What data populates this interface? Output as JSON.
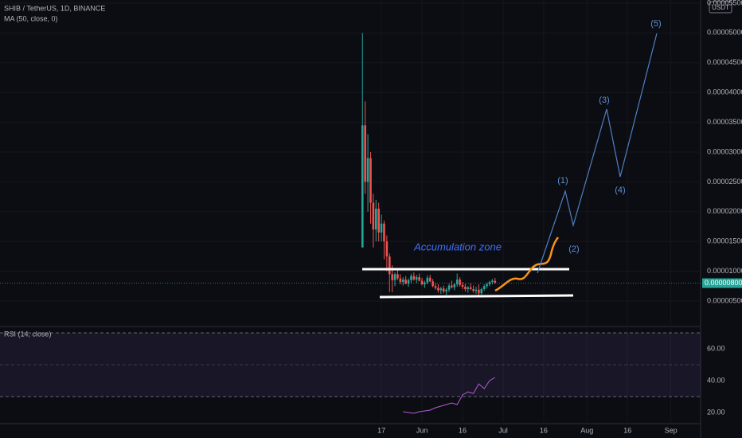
{
  "chart_data": [
    {
      "type": "candlestick",
      "title": "SHIB / TetherUS, 1D, BINANCE",
      "indicator": "MA (50, close, 0)",
      "currency": "USDT",
      "up_color": "#26a69a",
      "down_color": "#ef5350",
      "grid": true,
      "xlim": [
        -134,
        125
      ],
      "xticks": [
        {
          "value": 7,
          "label": "17"
        },
        {
          "value": 22,
          "label": "Jun"
        },
        {
          "value": 37,
          "label": "16"
        },
        {
          "value": 52,
          "label": "Jul"
        },
        {
          "value": 67,
          "label": "16"
        },
        {
          "value": 83,
          "label": "Aug"
        },
        {
          "value": 98,
          "label": "16"
        },
        {
          "value": 114,
          "label": "Sep"
        }
      ],
      "ylim": [
        1.39e-06,
        5.553e-05
      ],
      "yticks": [
        {
          "value": 5e-06,
          "label": "0.00000500"
        },
        {
          "value": 1e-05,
          "label": "0.00001000"
        },
        {
          "value": 1.5e-05,
          "label": "0.00001500"
        },
        {
          "value": 2e-05,
          "label": "0.00002000"
        },
        {
          "value": 2.5e-05,
          "label": "0.00002500"
        },
        {
          "value": 3e-05,
          "label": "0.00003000"
        },
        {
          "value": 3.5e-05,
          "label": "0.00003500"
        },
        {
          "value": 4e-05,
          "label": "0.00004000"
        },
        {
          "value": 4.5e-05,
          "label": "0.00004500"
        },
        {
          "value": 5e-05,
          "label": "0.00005000"
        },
        {
          "value": 5.5e-05,
          "label": "0.00005500"
        }
      ],
      "last_price": {
        "value": 8e-06,
        "label": "0.00000800"
      },
      "annotations": [
        "Accumulation zone",
        "(1)",
        "(2)",
        "(3)",
        "(4)",
        "(5)"
      ],
      "x": [
        0,
        1,
        2,
        3,
        4,
        5,
        6,
        7,
        8,
        9,
        10,
        11,
        12,
        13,
        14,
        15,
        16,
        17,
        18,
        19,
        20,
        21,
        22,
        23,
        24,
        25,
        26,
        27,
        28,
        29,
        30,
        31,
        32,
        33,
        34,
        35,
        36,
        37,
        38,
        39,
        40,
        41,
        42,
        43,
        44,
        45,
        46,
        47,
        48,
        49
      ],
      "candles": [
        [
          1.4e-05,
          5e-05,
          1.4e-05,
          3.45e-05
        ],
        [
          3.45e-05,
          3.85e-05,
          2.3e-05,
          2.5e-05
        ],
        [
          2.5e-05,
          3.3e-05,
          2e-05,
          2.9e-05
        ],
        [
          2.9e-05,
          3e-05,
          1.8e-05,
          2.15e-05
        ],
        [
          2.15e-05,
          2.3e-05,
          1.4e-05,
          1.7e-05
        ],
        [
          1.7e-05,
          2.2e-05,
          1.5e-05,
          2.05e-05
        ],
        [
          2.05e-05,
          2.15e-05,
          1.5e-05,
          1.65e-05
        ],
        [
          1.65e-05,
          1.95e-05,
          1.5e-05,
          1.8e-05
        ],
        [
          1.8e-05,
          1.85e-05,
          1.2e-05,
          1.5e-05
        ],
        [
          1.5e-05,
          1.6e-05,
          1e-05,
          1.25e-05
        ],
        [
          1.25e-05,
          1.3e-05,
          6.5e-06,
          9.5e-06
        ],
        [
          9.5e-06,
          1.1e-05,
          6.5e-06,
          8.5e-06
        ],
        [
          8.5e-06,
          9.8e-06,
          7.5e-06,
          9.5e-06
        ],
        [
          9.5e-06,
          1.05e-05,
          8.5e-06,
          8.8e-06
        ],
        [
          8.8e-06,
          9.5e-06,
          7.8e-06,
          8.2e-06
        ],
        [
          8.2e-06,
          9e-06,
          7.6e-06,
          8.6e-06
        ],
        [
          8.6e-06,
          9.2e-06,
          7.8e-06,
          7.9e-06
        ],
        [
          7.9e-06,
          8.8e-06,
          7.4e-06,
          8.5e-06
        ],
        [
          8.5e-06,
          9.6e-06,
          8e-06,
          9.2e-06
        ],
        [
          9.2e-06,
          9.8e-06,
          8.4e-06,
          8.6e-06
        ],
        [
          8.6e-06,
          9.4e-06,
          8e-06,
          9e-06
        ],
        [
          9e-06,
          9.6e-06,
          8.3e-06,
          8.4e-06
        ],
        [
          8.4e-06,
          8.9e-06,
          7.6e-06,
          7.8e-06
        ],
        [
          7.8e-06,
          8.4e-06,
          7.2e-06,
          8.1e-06
        ],
        [
          8.1e-06,
          9.3e-06,
          7.8e-06,
          8.9e-06
        ],
        [
          8.9e-06,
          9.4e-06,
          8.2e-06,
          8.3e-06
        ],
        [
          8.3e-06,
          8.7e-06,
          7.3e-06,
          7.5e-06
        ],
        [
          7.5e-06,
          8e-06,
          6.9e-06,
          7.2e-06
        ],
        [
          7.2e-06,
          7.8e-06,
          6.4e-06,
          6.8e-06
        ],
        [
          6.8e-06,
          7.4e-06,
          6.2e-06,
          7.1e-06
        ],
        [
          7.1e-06,
          7.6e-06,
          6.3e-06,
          6.6e-06
        ],
        [
          6.6e-06,
          7.2e-06,
          6e-06,
          6.9e-06
        ],
        [
          6.9e-06,
          7.9e-06,
          6.5e-06,
          7.6e-06
        ],
        [
          7.6e-06,
          8.4e-06,
          7.1e-06,
          7.3e-06
        ],
        [
          7.3e-06,
          8e-06,
          6.8e-06,
          7.8e-06
        ],
        [
          7.8e-06,
          9.6e-06,
          7.4e-06,
          8.6e-06
        ],
        [
          8.6e-06,
          9e-06,
          7.4e-06,
          7.7e-06
        ],
        [
          7.7e-06,
          8.2e-06,
          7e-06,
          7.4e-06
        ],
        [
          7.4e-06,
          7.9e-06,
          6.6e-06,
          7e-06
        ],
        [
          7e-06,
          7.5e-06,
          6.4e-06,
          7.3e-06
        ],
        [
          7.3e-06,
          8e-06,
          6.8e-06,
          7e-06
        ],
        [
          7e-06,
          7.6e-06,
          6.4e-06,
          6.7e-06
        ],
        [
          6.7e-06,
          7.4e-06,
          6.2e-06,
          6.9e-06
        ],
        [
          6.9e-06,
          7.8e-06,
          5.9e-06,
          6.3e-06
        ],
        [
          6.3e-06,
          7.2e-06,
          6.1e-06,
          7e-06
        ],
        [
          7e-06,
          7.8e-06,
          6.7e-06,
          7.5e-06
        ],
        [
          7.5e-06,
          8.1e-06,
          7.1e-06,
          7.8e-06
        ],
        [
          7.8e-06,
          8.4e-06,
          7.5e-06,
          8.2e-06
        ],
        [
          8.2e-06,
          8.7e-06,
          7.8e-06,
          8.4e-06
        ],
        [
          8.4e-06,
          8.9e-06,
          8e-06,
          8e-06
        ]
      ]
    },
    {
      "type": "line",
      "title": "RSI (14, close)",
      "color": "#b35bd6",
      "band_color": "#7e57c2",
      "xlim": [
        -134,
        125
      ],
      "ylim": [
        11.5,
        74
      ],
      "bands": [
        30,
        50,
        70
      ],
      "yticks": [
        {
          "value": 20,
          "label": "20.00"
        },
        {
          "value": 40,
          "label": "40.00"
        },
        {
          "value": 60,
          "label": "60.00"
        }
      ],
      "x": [
        15,
        17,
        19,
        21,
        23,
        25,
        27,
        29,
        31,
        33,
        35,
        37,
        39,
        41,
        43,
        45,
        47,
        49
      ],
      "values": [
        20.5,
        20,
        19.5,
        20.5,
        21,
        21.5,
        23,
        24,
        25,
        26,
        25,
        31,
        33,
        32,
        38,
        35,
        40,
        42
      ]
    }
  ]
}
